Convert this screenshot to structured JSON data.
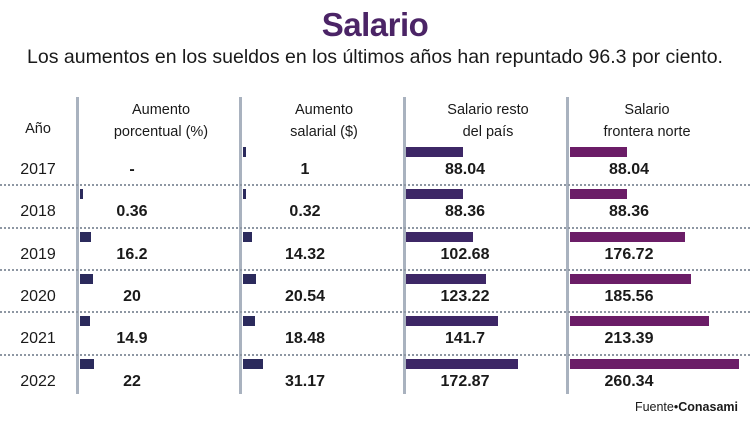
{
  "title": "Salario",
  "subtitle": "Los aumentos en los sueldos en los últimos años han repuntado 96.3 por ciento.",
  "headers": {
    "year": "Año",
    "pct_1": "Aumento",
    "pct_2": "porcentual  (%)",
    "amt_1": "Aumento",
    "amt_2": "salarial ($)",
    "rest_1": "Salario resto",
    "rest_2": "del país",
    "front_1": "Salario",
    "front_2": "frontera norte"
  },
  "source": {
    "prefix": "Fuente",
    "name": "Conasami"
  },
  "colors": {
    "title": "#4b2466",
    "navy": "#2b2a5c",
    "indigo": "#3d2766",
    "purple": "#6b1d67",
    "separator": "#a9b2bf"
  },
  "chart_data": {
    "type": "table",
    "years": [
      "2017",
      "2018",
      "2019",
      "2020",
      "2021",
      "2022"
    ],
    "columns": [
      {
        "key": "pct",
        "values": [
          null,
          0.36,
          16.2,
          20,
          14.9,
          22
        ],
        "labels": [
          "-",
          "0.36",
          "16.2",
          "20",
          "14.9",
          "22"
        ]
      },
      {
        "key": "amt",
        "values": [
          1,
          0.32,
          14.32,
          20.54,
          18.48,
          31.17
        ],
        "labels": [
          "1",
          "0.32",
          "14.32",
          "20.54",
          "18.48",
          "31.17"
        ]
      },
      {
        "key": "rest",
        "values": [
          88.04,
          88.36,
          102.68,
          123.22,
          141.7,
          172.87
        ],
        "labels": [
          "88.04",
          "88.36",
          "102.68",
          "123.22",
          "141.7",
          "172.87"
        ]
      },
      {
        "key": "front",
        "values": [
          88.04,
          88.36,
          176.72,
          185.56,
          213.39,
          260.34
        ],
        "labels": [
          "88.04",
          "88.36",
          "176.72",
          "185.56",
          "213.39",
          "260.34"
        ]
      }
    ]
  }
}
